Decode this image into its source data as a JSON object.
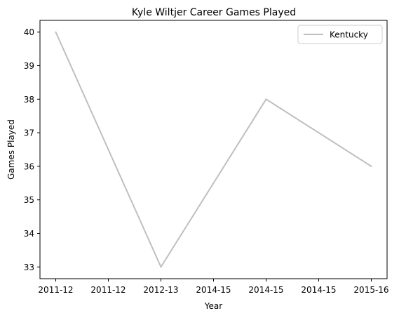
{
  "chart_data": {
    "type": "line",
    "title": "Kyle Wiltjer Career Games Played",
    "xlabel": "Year",
    "ylabel": "Games Played",
    "x_tick_labels": [
      "2011-12",
      "2011-12",
      "2012-13",
      "2014-15",
      "2014-15",
      "2014-15",
      "2015-16"
    ],
    "ylim": [
      32.65,
      40.35
    ],
    "y_ticks": [
      33,
      34,
      35,
      36,
      37,
      38,
      39,
      40
    ],
    "grid": false,
    "legend_position": "top-right",
    "series": [
      {
        "name": "Kentucky",
        "color": "#bfbfbf",
        "points": [
          {
            "x_index": 0,
            "label": "2011-12",
            "y": 40
          },
          {
            "x_index": 2,
            "label": "2012-13",
            "y": 33
          },
          {
            "x_index": 4,
            "label": "2014-15",
            "y": 38
          },
          {
            "x_index": 6,
            "label": "2015-16",
            "y": 36
          }
        ]
      }
    ]
  }
}
